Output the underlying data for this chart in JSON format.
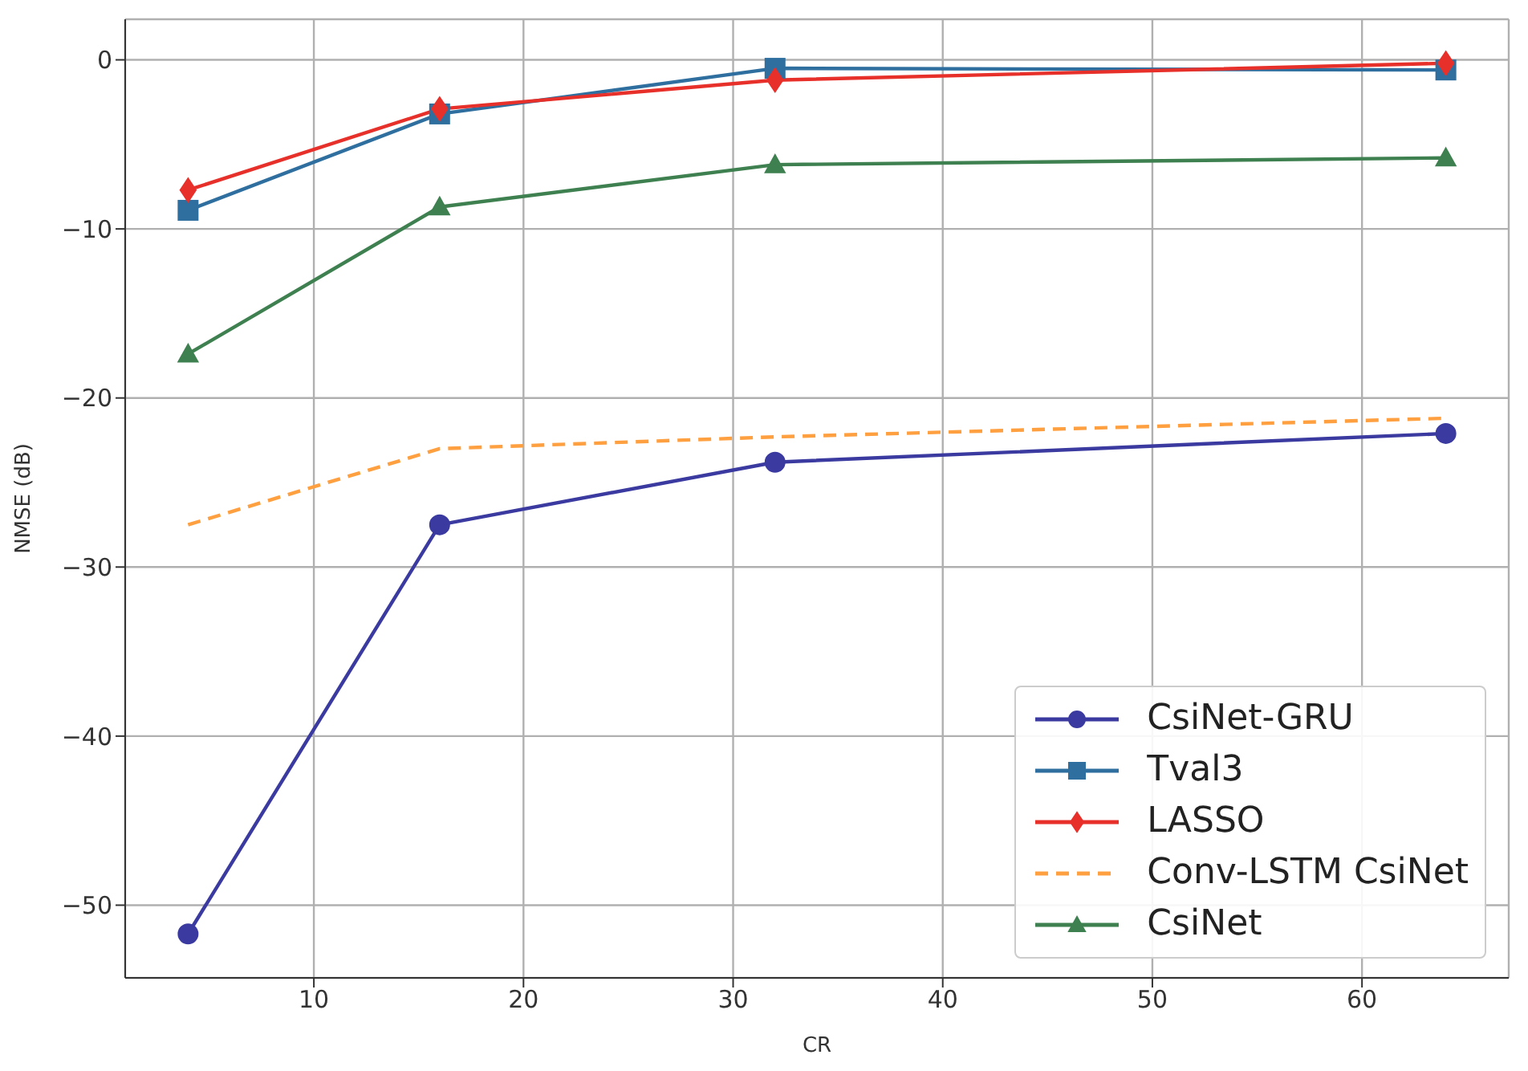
{
  "chart_data": {
    "type": "line",
    "xlabel": "CR",
    "ylabel": "NMSE (dB)",
    "x": [
      4,
      16,
      32,
      64
    ],
    "series": [
      {
        "name": "CsiNet-GRU",
        "color": "#3a3aa0",
        "marker": "circle",
        "line_style": "solid",
        "values": [
          -51.7,
          -27.5,
          -23.8,
          -22.1
        ]
      },
      {
        "name": "Tval3",
        "color": "#2f6f9f",
        "marker": "square",
        "line_style": "solid",
        "values": [
          -8.9,
          -3.2,
          -0.5,
          -0.6
        ]
      },
      {
        "name": "LASSO",
        "color": "#e8302a",
        "marker": "diamond",
        "line_style": "solid",
        "values": [
          -7.7,
          -2.9,
          -1.2,
          -0.2
        ]
      },
      {
        "name": "Conv-LSTM CsiNet",
        "color": "#ffa040",
        "marker": "none",
        "line_style": "dashed",
        "values": [
          -27.5,
          -23.0,
          -22.3,
          -21.2
        ]
      },
      {
        "name": "CsiNet",
        "color": "#3f8050",
        "marker": "triangle",
        "line_style": "solid",
        "values": [
          -17.4,
          -8.7,
          -6.2,
          -5.8
        ]
      }
    ],
    "xlim": [
      1,
      67
    ],
    "xticks": [
      10,
      20,
      30,
      40,
      50,
      60
    ],
    "ylim": [
      -54.3,
      2.4
    ],
    "yticks": [
      -50,
      -40,
      -30,
      -20,
      -10,
      0
    ],
    "grid": true,
    "legend": "bottom right"
  }
}
